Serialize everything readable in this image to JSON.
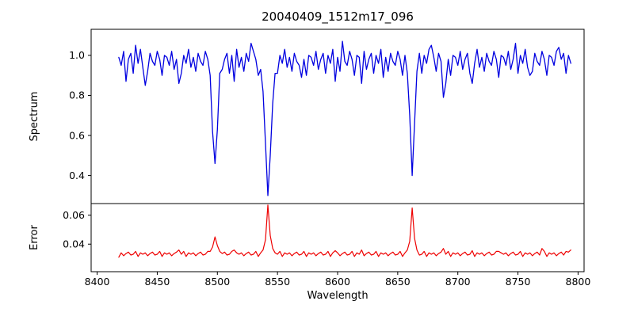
{
  "chart_data": {
    "type": "line",
    "title": "20040409_1512m17_096",
    "xlabel": "Wavelength",
    "x_start": 8418,
    "x_step": 2,
    "xlim": [
      8395,
      8805
    ],
    "x_ticks": [
      {
        "v": 8400,
        "label": "8400"
      },
      {
        "v": 8450,
        "label": "8450"
      },
      {
        "v": 8500,
        "label": "8500"
      },
      {
        "v": 8550,
        "label": "8550"
      },
      {
        "v": 8600,
        "label": "8600"
      },
      {
        "v": 8650,
        "label": "8650"
      },
      {
        "v": 8700,
        "label": "8700"
      },
      {
        "v": 8750,
        "label": "8750"
      },
      {
        "v": 8800,
        "label": "8800"
      }
    ],
    "grid": false,
    "legend": "none",
    "panels": [
      {
        "name": "spectrum",
        "ylabel": "Spectrum",
        "color": "#0000e0",
        "ylim": [
          0.26,
          1.13
        ],
        "y_ticks": [
          {
            "v": 1.0,
            "label": "1.0"
          },
          {
            "v": 0.8,
            "label": "0.8"
          },
          {
            "v": 0.6,
            "label": "0.6"
          },
          {
            "v": 0.4,
            "label": "0.4"
          }
        ],
        "values": [
          0.99,
          0.95,
          1.02,
          0.87,
          0.98,
          1.01,
          0.91,
          1.05,
          0.96,
          1.03,
          0.94,
          0.85,
          0.92,
          1.01,
          0.97,
          0.95,
          1.02,
          0.98,
          0.9,
          1.0,
          0.99,
          0.95,
          1.02,
          0.93,
          0.98,
          0.86,
          0.91,
          1.0,
          0.96,
          1.03,
          0.94,
          0.99,
          0.92,
          1.01,
          0.97,
          0.95,
          1.02,
          0.98,
          0.9,
          0.62,
          0.46,
          0.63,
          0.91,
          0.93,
          0.98,
          1.01,
          0.91,
          1.0,
          0.87,
          1.03,
          0.94,
          0.99,
          0.92,
          1.01,
          0.97,
          1.06,
          1.02,
          0.98,
          0.9,
          0.93,
          0.82,
          0.56,
          0.3,
          0.5,
          0.76,
          0.91,
          0.91,
          1.0,
          0.96,
          1.03,
          0.94,
          0.99,
          0.92,
          1.01,
          0.97,
          0.95,
          0.89,
          0.98,
          0.9,
          1.0,
          0.99,
          0.95,
          1.02,
          0.93,
          0.98,
          1.01,
          0.91,
          1.0,
          0.96,
          1.03,
          0.87,
          0.99,
          0.92,
          1.07,
          0.97,
          0.95,
          1.02,
          0.98,
          0.9,
          1.0,
          0.99,
          0.86,
          1.02,
          0.93,
          0.98,
          1.01,
          0.91,
          1.0,
          0.96,
          1.03,
          0.89,
          0.99,
          0.92,
          1.01,
          0.97,
          0.95,
          1.02,
          0.98,
          0.9,
          1.0,
          0.91,
          0.7,
          0.4,
          0.66,
          0.92,
          1.01,
          0.91,
          1.0,
          0.96,
          1.03,
          1.05,
          0.99,
          0.92,
          1.01,
          0.97,
          0.79,
          0.86,
          0.98,
          0.9,
          1.0,
          0.99,
          0.95,
          1.02,
          0.93,
          0.98,
          1.01,
          0.91,
          0.86,
          0.96,
          1.03,
          0.94,
          0.99,
          0.92,
          1.01,
          0.97,
          0.95,
          1.02,
          0.98,
          0.89,
          1.0,
          0.99,
          0.95,
          1.02,
          0.93,
          0.98,
          1.06,
          0.91,
          1.0,
          0.96,
          1.03,
          0.94,
          0.9,
          0.92,
          1.01,
          0.97,
          0.95,
          1.02,
          0.98,
          0.9,
          1.0,
          0.99,
          0.95,
          1.02,
          1.04,
          0.98,
          1.01,
          0.91,
          1.0,
          0.96
        ]
      },
      {
        "name": "error",
        "ylabel": "Error",
        "color": "#ee0000",
        "ylim": [
          0.021,
          0.068
        ],
        "y_ticks": [
          {
            "v": 0.06,
            "label": "0.06"
          },
          {
            "v": 0.04,
            "label": "0.04"
          }
        ],
        "values": [
          0.031,
          0.034,
          0.032,
          0.0335,
          0.0345,
          0.0325,
          0.033,
          0.035,
          0.0315,
          0.034,
          0.033,
          0.034,
          0.032,
          0.0335,
          0.0345,
          0.0325,
          0.033,
          0.035,
          0.0315,
          0.034,
          0.033,
          0.034,
          0.032,
          0.0335,
          0.0345,
          0.036,
          0.033,
          0.035,
          0.0315,
          0.034,
          0.033,
          0.034,
          0.032,
          0.0335,
          0.0345,
          0.0325,
          0.033,
          0.035,
          0.035,
          0.038,
          0.045,
          0.039,
          0.035,
          0.0335,
          0.0345,
          0.0325,
          0.033,
          0.035,
          0.036,
          0.034,
          0.033,
          0.034,
          0.032,
          0.0335,
          0.0345,
          0.0325,
          0.033,
          0.035,
          0.0315,
          0.034,
          0.036,
          0.043,
          0.067,
          0.046,
          0.037,
          0.034,
          0.033,
          0.035,
          0.0315,
          0.034,
          0.033,
          0.034,
          0.032,
          0.0335,
          0.0345,
          0.0325,
          0.033,
          0.035,
          0.0315,
          0.034,
          0.033,
          0.034,
          0.032,
          0.0335,
          0.0345,
          0.0325,
          0.033,
          0.035,
          0.0315,
          0.034,
          0.0355,
          0.034,
          0.032,
          0.0335,
          0.0345,
          0.0325,
          0.033,
          0.035,
          0.0315,
          0.034,
          0.033,
          0.036,
          0.032,
          0.0335,
          0.0345,
          0.0325,
          0.033,
          0.035,
          0.0315,
          0.034,
          0.033,
          0.034,
          0.032,
          0.0335,
          0.0345,
          0.0325,
          0.033,
          0.035,
          0.0315,
          0.034,
          0.036,
          0.042,
          0.065,
          0.044,
          0.036,
          0.0325,
          0.033,
          0.035,
          0.0315,
          0.034,
          0.033,
          0.034,
          0.032,
          0.0335,
          0.0345,
          0.037,
          0.033,
          0.035,
          0.0315,
          0.034,
          0.033,
          0.034,
          0.032,
          0.0335,
          0.0345,
          0.0325,
          0.033,
          0.0355,
          0.0315,
          0.034,
          0.033,
          0.034,
          0.032,
          0.0335,
          0.0345,
          0.0325,
          0.033,
          0.035,
          0.035,
          0.034,
          0.033,
          0.034,
          0.032,
          0.0335,
          0.0345,
          0.0325,
          0.033,
          0.035,
          0.0315,
          0.034,
          0.033,
          0.034,
          0.032,
          0.0335,
          0.0345,
          0.0325,
          0.037,
          0.035,
          0.0315,
          0.034,
          0.033,
          0.034,
          0.032,
          0.0335,
          0.0345,
          0.0325,
          0.035,
          0.0345,
          0.036
        ]
      }
    ]
  }
}
